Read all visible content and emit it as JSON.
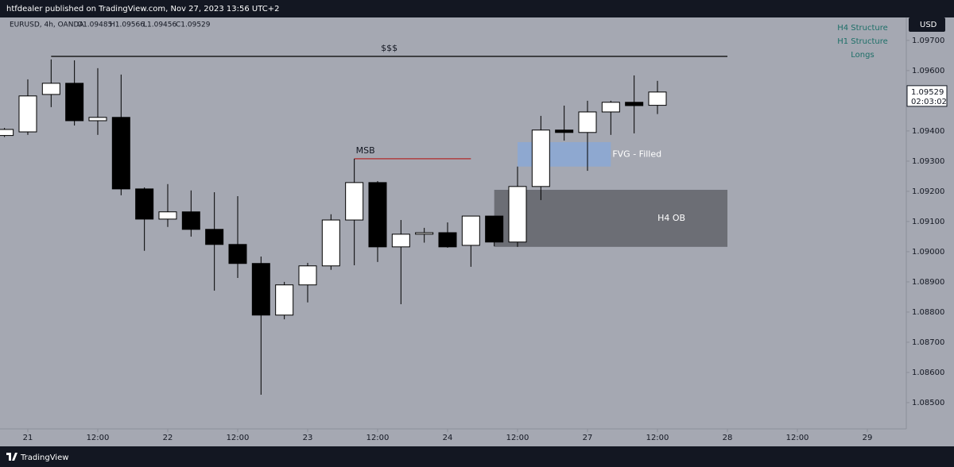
{
  "header": {
    "published": "htfdealer published on TradingView.com, Nov 27, 2023 13:56 UTC+2",
    "symbol": "EURUSD, 4h, OANDA",
    "ohlc": [
      "O1.09485",
      "H1.09566",
      "L1.09456",
      "C1.09529"
    ],
    "currency": "USD",
    "countdown": "02:03:02",
    "brand": "TradingView"
  },
  "chart_data": {
    "type": "candlestick",
    "x": [
      -4,
      0,
      4,
      8,
      12,
      16,
      20,
      24,
      28,
      32,
      36,
      40,
      44,
      48,
      52,
      56,
      60,
      64,
      68,
      72,
      76,
      80,
      84,
      88,
      92,
      96,
      100,
      104,
      108
    ],
    "open": [
      1.09385,
      1.09397,
      1.09521,
      1.09558,
      1.09434,
      1.09445,
      1.09208,
      1.09108,
      1.09132,
      1.09074,
      1.09024,
      1.08961,
      1.0879,
      1.0889,
      1.08953,
      1.09105,
      1.09229,
      1.09016,
      1.09058,
      1.09063,
      1.09021,
      1.09118,
      1.09032,
      1.09216,
      1.09403,
      1.09395,
      1.09463,
      1.09495,
      1.09485
    ],
    "high": [
      1.0941,
      1.09571,
      1.09637,
      1.09634,
      1.09608,
      1.09587,
      1.09213,
      1.09224,
      1.09203,
      1.09197,
      1.09184,
      1.08984,
      1.089,
      1.08963,
      1.09124,
      1.09308,
      1.09234,
      1.09105,
      1.09079,
      1.09097,
      1.09118,
      1.09118,
      1.09282,
      1.0945,
      1.09484,
      1.095,
      1.095,
      1.09584,
      1.09566
    ],
    "low": [
      1.0938,
      1.09387,
      1.09479,
      1.09418,
      1.09387,
      1.09187,
      1.09003,
      1.09082,
      1.0905,
      1.08871,
      1.08913,
      1.08526,
      1.08776,
      1.08832,
      1.0894,
      1.08955,
      1.08966,
      1.08826,
      1.0903,
      1.09013,
      1.0895,
      1.09018,
      1.09016,
      1.09171,
      1.09368,
      1.09268,
      1.09387,
      1.09392,
      1.09456
    ],
    "close": [
      1.09405,
      1.09516,
      1.09558,
      1.09434,
      1.09445,
      1.09208,
      1.09108,
      1.09132,
      1.09074,
      1.09024,
      1.08961,
      1.0879,
      1.0889,
      1.08953,
      1.09105,
      1.09229,
      1.09016,
      1.09058,
      1.09063,
      1.09016,
      1.09118,
      1.09032,
      1.09216,
      1.09403,
      1.09395,
      1.09463,
      1.09495,
      1.09484,
      1.09529
    ],
    "up_color": "#ffffff",
    "down_color": "#000000",
    "xlim": [
      -4.77,
      150.68
    ],
    "xticks": [
      {
        "value": 0,
        "label": "21"
      },
      {
        "value": 12,
        "label": "12:00"
      },
      {
        "value": 24,
        "label": "22"
      },
      {
        "value": 36,
        "label": "12:00"
      },
      {
        "value": 48,
        "label": "23"
      },
      {
        "value": 60,
        "label": "12:00"
      },
      {
        "value": 72,
        "label": "24"
      },
      {
        "value": 84,
        "label": "12:00"
      },
      {
        "value": 96,
        "label": "27"
      },
      {
        "value": 108,
        "label": "12:00"
      },
      {
        "value": 120,
        "label": "28"
      },
      {
        "value": 132,
        "label": "12:00"
      },
      {
        "value": 144,
        "label": "29"
      }
    ],
    "ylim": [
      1.08413,
      1.09776
    ],
    "yticks": [
      {
        "value": 1.097,
        "label": "1.09700"
      },
      {
        "value": 1.096,
        "label": "1.09600"
      },
      {
        "value": 1.095,
        "label": "1.09500"
      },
      {
        "value": 1.094,
        "label": "1.09400"
      },
      {
        "value": 1.093,
        "label": "1.09300"
      },
      {
        "value": 1.092,
        "label": "1.09200"
      },
      {
        "value": 1.091,
        "label": "1.09100"
      },
      {
        "value": 1.09,
        "label": "1.09000"
      },
      {
        "value": 1.089,
        "label": "1.08900"
      },
      {
        "value": 1.088,
        "label": "1.08800"
      },
      {
        "value": 1.087,
        "label": "1.08700"
      },
      {
        "value": 1.086,
        "label": "1.08600"
      },
      {
        "value": 1.085,
        "label": "1.08500"
      }
    ],
    "lines": [
      {
        "text": "$$$",
        "price": 1.09647,
        "x": [
          4,
          120
        ],
        "color": "#000000"
      },
      {
        "text": "MSB",
        "price": 1.09308,
        "x": [
          56,
          76
        ],
        "color": "#b22a2a"
      }
    ],
    "zones": [
      {
        "text": "FVG - Filled",
        "y": [
          1.09282,
          1.09363
        ],
        "x": [
          84,
          100
        ],
        "color": "#8ea8d0"
      },
      {
        "text": "H4 OB",
        "y": [
          1.09016,
          1.09205
        ],
        "x": [
          80,
          120
        ],
        "color": "#6c6e75"
      }
    ],
    "legend": [
      "H4 Structure",
      "H1 Structure",
      "Longs"
    ],
    "legend_color": "#1d6f68"
  }
}
